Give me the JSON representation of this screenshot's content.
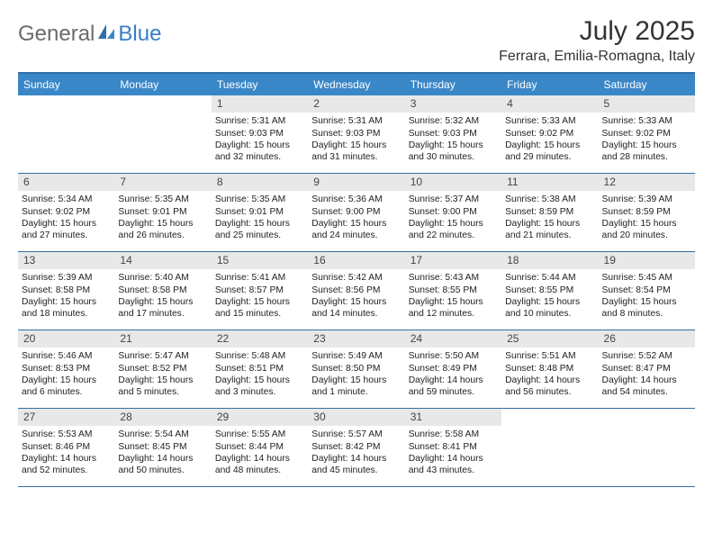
{
  "brand": {
    "word1": "General",
    "word2": "Blue"
  },
  "title": "July 2025",
  "location": "Ferrara, Emilia-Romagna, Italy",
  "colors": {
    "header_bg": "#3a87c8",
    "border": "#2f6fa8",
    "daynum_bg": "#e8e8e8",
    "logo_gray": "#6b6b6b",
    "logo_blue": "#3a7fc4"
  },
  "days_of_week": [
    "Sunday",
    "Monday",
    "Tuesday",
    "Wednesday",
    "Thursday",
    "Friday",
    "Saturday"
  ],
  "weeks": [
    [
      {
        "n": "",
        "empty": true
      },
      {
        "n": "",
        "empty": true
      },
      {
        "n": "1",
        "sunrise": "Sunrise: 5:31 AM",
        "sunset": "Sunset: 9:03 PM",
        "day1": "Daylight: 15 hours",
        "day2": "and 32 minutes."
      },
      {
        "n": "2",
        "sunrise": "Sunrise: 5:31 AM",
        "sunset": "Sunset: 9:03 PM",
        "day1": "Daylight: 15 hours",
        "day2": "and 31 minutes."
      },
      {
        "n": "3",
        "sunrise": "Sunrise: 5:32 AM",
        "sunset": "Sunset: 9:03 PM",
        "day1": "Daylight: 15 hours",
        "day2": "and 30 minutes."
      },
      {
        "n": "4",
        "sunrise": "Sunrise: 5:33 AM",
        "sunset": "Sunset: 9:02 PM",
        "day1": "Daylight: 15 hours",
        "day2": "and 29 minutes."
      },
      {
        "n": "5",
        "sunrise": "Sunrise: 5:33 AM",
        "sunset": "Sunset: 9:02 PM",
        "day1": "Daylight: 15 hours",
        "day2": "and 28 minutes."
      }
    ],
    [
      {
        "n": "6",
        "sunrise": "Sunrise: 5:34 AM",
        "sunset": "Sunset: 9:02 PM",
        "day1": "Daylight: 15 hours",
        "day2": "and 27 minutes."
      },
      {
        "n": "7",
        "sunrise": "Sunrise: 5:35 AM",
        "sunset": "Sunset: 9:01 PM",
        "day1": "Daylight: 15 hours",
        "day2": "and 26 minutes."
      },
      {
        "n": "8",
        "sunrise": "Sunrise: 5:35 AM",
        "sunset": "Sunset: 9:01 PM",
        "day1": "Daylight: 15 hours",
        "day2": "and 25 minutes."
      },
      {
        "n": "9",
        "sunrise": "Sunrise: 5:36 AM",
        "sunset": "Sunset: 9:00 PM",
        "day1": "Daylight: 15 hours",
        "day2": "and 24 minutes."
      },
      {
        "n": "10",
        "sunrise": "Sunrise: 5:37 AM",
        "sunset": "Sunset: 9:00 PM",
        "day1": "Daylight: 15 hours",
        "day2": "and 22 minutes."
      },
      {
        "n": "11",
        "sunrise": "Sunrise: 5:38 AM",
        "sunset": "Sunset: 8:59 PM",
        "day1": "Daylight: 15 hours",
        "day2": "and 21 minutes."
      },
      {
        "n": "12",
        "sunrise": "Sunrise: 5:39 AM",
        "sunset": "Sunset: 8:59 PM",
        "day1": "Daylight: 15 hours",
        "day2": "and 20 minutes."
      }
    ],
    [
      {
        "n": "13",
        "sunrise": "Sunrise: 5:39 AM",
        "sunset": "Sunset: 8:58 PM",
        "day1": "Daylight: 15 hours",
        "day2": "and 18 minutes."
      },
      {
        "n": "14",
        "sunrise": "Sunrise: 5:40 AM",
        "sunset": "Sunset: 8:58 PM",
        "day1": "Daylight: 15 hours",
        "day2": "and 17 minutes."
      },
      {
        "n": "15",
        "sunrise": "Sunrise: 5:41 AM",
        "sunset": "Sunset: 8:57 PM",
        "day1": "Daylight: 15 hours",
        "day2": "and 15 minutes."
      },
      {
        "n": "16",
        "sunrise": "Sunrise: 5:42 AM",
        "sunset": "Sunset: 8:56 PM",
        "day1": "Daylight: 15 hours",
        "day2": "and 14 minutes."
      },
      {
        "n": "17",
        "sunrise": "Sunrise: 5:43 AM",
        "sunset": "Sunset: 8:55 PM",
        "day1": "Daylight: 15 hours",
        "day2": "and 12 minutes."
      },
      {
        "n": "18",
        "sunrise": "Sunrise: 5:44 AM",
        "sunset": "Sunset: 8:55 PM",
        "day1": "Daylight: 15 hours",
        "day2": "and 10 minutes."
      },
      {
        "n": "19",
        "sunrise": "Sunrise: 5:45 AM",
        "sunset": "Sunset: 8:54 PM",
        "day1": "Daylight: 15 hours",
        "day2": "and 8 minutes."
      }
    ],
    [
      {
        "n": "20",
        "sunrise": "Sunrise: 5:46 AM",
        "sunset": "Sunset: 8:53 PM",
        "day1": "Daylight: 15 hours",
        "day2": "and 6 minutes."
      },
      {
        "n": "21",
        "sunrise": "Sunrise: 5:47 AM",
        "sunset": "Sunset: 8:52 PM",
        "day1": "Daylight: 15 hours",
        "day2": "and 5 minutes."
      },
      {
        "n": "22",
        "sunrise": "Sunrise: 5:48 AM",
        "sunset": "Sunset: 8:51 PM",
        "day1": "Daylight: 15 hours",
        "day2": "and 3 minutes."
      },
      {
        "n": "23",
        "sunrise": "Sunrise: 5:49 AM",
        "sunset": "Sunset: 8:50 PM",
        "day1": "Daylight: 15 hours",
        "day2": "and 1 minute."
      },
      {
        "n": "24",
        "sunrise": "Sunrise: 5:50 AM",
        "sunset": "Sunset: 8:49 PM",
        "day1": "Daylight: 14 hours",
        "day2": "and 59 minutes."
      },
      {
        "n": "25",
        "sunrise": "Sunrise: 5:51 AM",
        "sunset": "Sunset: 8:48 PM",
        "day1": "Daylight: 14 hours",
        "day2": "and 56 minutes."
      },
      {
        "n": "26",
        "sunrise": "Sunrise: 5:52 AM",
        "sunset": "Sunset: 8:47 PM",
        "day1": "Daylight: 14 hours",
        "day2": "and 54 minutes."
      }
    ],
    [
      {
        "n": "27",
        "sunrise": "Sunrise: 5:53 AM",
        "sunset": "Sunset: 8:46 PM",
        "day1": "Daylight: 14 hours",
        "day2": "and 52 minutes."
      },
      {
        "n": "28",
        "sunrise": "Sunrise: 5:54 AM",
        "sunset": "Sunset: 8:45 PM",
        "day1": "Daylight: 14 hours",
        "day2": "and 50 minutes."
      },
      {
        "n": "29",
        "sunrise": "Sunrise: 5:55 AM",
        "sunset": "Sunset: 8:44 PM",
        "day1": "Daylight: 14 hours",
        "day2": "and 48 minutes."
      },
      {
        "n": "30",
        "sunrise": "Sunrise: 5:57 AM",
        "sunset": "Sunset: 8:42 PM",
        "day1": "Daylight: 14 hours",
        "day2": "and 45 minutes."
      },
      {
        "n": "31",
        "sunrise": "Sunrise: 5:58 AM",
        "sunset": "Sunset: 8:41 PM",
        "day1": "Daylight: 14 hours",
        "day2": "and 43 minutes."
      },
      {
        "n": "",
        "empty": true
      },
      {
        "n": "",
        "empty": true
      }
    ]
  ]
}
